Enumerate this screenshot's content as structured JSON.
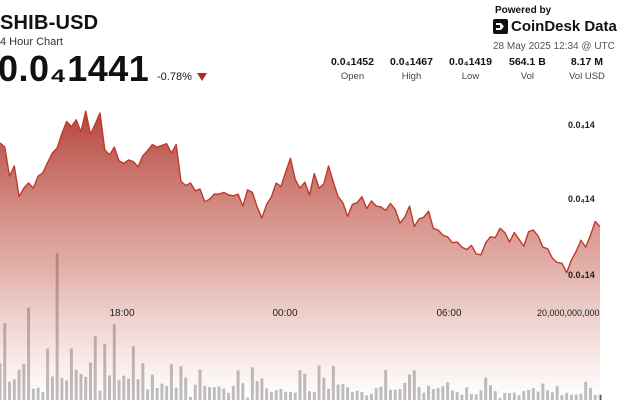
{
  "header": {
    "title": "SHIB-USD",
    "subtitle": "4 Hour Chart",
    "price": "0.0₄1441",
    "change": "-0.78%",
    "powered_by": "Powered by",
    "brand": "CoinDesk Data",
    "timestamp": "28 May 2025 12:34 @ UTC"
  },
  "stats": [
    {
      "value": "0.0₄1452",
      "label": "Open"
    },
    {
      "value": "0.0₄1467",
      "label": "High"
    },
    {
      "value": "0.0₄1419",
      "label": "Low"
    },
    {
      "value": "564.1 B",
      "label": "Vol"
    },
    {
      "value": "8.17 M",
      "label": "Vol USD"
    }
  ],
  "colors": {
    "line": "#c0392b",
    "area_top": "#b23a30",
    "volume_bar": "#5b5b5b",
    "down_arrow": "#b02a22"
  },
  "chart_data": {
    "type": "area",
    "title": "SHIB-USD",
    "x_tick_labels": [
      "18:00",
      "00:00",
      "06:00"
    ],
    "y_tick_labels": [
      "0.0₄14",
      "0.0₄14",
      "0.0₄14"
    ],
    "volume_tick_label": "20,000,000,000",
    "series": [
      {
        "name": "Price",
        "values": [
          1449.9,
          1449.4,
          1446.0,
          1447.2,
          1443.6,
          1444.6,
          1445.2,
          1444.6,
          1446.0,
          1446.4,
          1447.6,
          1448.7,
          1449.3,
          1451.0,
          1452.4,
          1451.8,
          1452.6,
          1451.2,
          1453.6,
          1450.9,
          1452.1,
          1453.4,
          1449.1,
          1448.5,
          1449.4,
          1447.8,
          1447.5,
          1447.9,
          1447.7,
          1447.1,
          1448.4,
          1449.0,
          1449.7,
          1449.4,
          1449.6,
          1449.8,
          1448.7,
          1449.7,
          1445.4,
          1444.9,
          1445.2,
          1444.3,
          1444.5,
          1443.0,
          1443.3,
          1443.9,
          1443.9,
          1444.1,
          1443.8,
          1443.7,
          1443.9,
          1442.5,
          1444.4,
          1444.1,
          1442.4,
          1441.1,
          1442.7,
          1443.6,
          1445.2,
          1444.8,
          1446.5,
          1448.1,
          1445.6,
          1444.6,
          1445.3,
          1443.8,
          1446.3,
          1444.6,
          1445.1,
          1447.2,
          1445.3,
          1443.6,
          1442.9,
          1441.3,
          1442.7,
          1442.9,
          1443.6,
          1442.2,
          1443.1,
          1442.5,
          1442.4,
          1442.0,
          1442.8,
          1442.1,
          1440.5,
          1441.2,
          1442.5,
          1440.1,
          1441.0,
          1441.2,
          1441.9,
          1439.9,
          1439.7,
          1439.1,
          1438.9,
          1438.2,
          1438.3,
          1437.7,
          1437.4,
          1437.9,
          1436.9,
          1436.8,
          1438.2,
          1438.9,
          1438.8,
          1439.9,
          1439.4,
          1438.3,
          1439.4,
          1438.6,
          1437.8,
          1439.5,
          1439.7,
          1439.0,
          1437.7,
          1437.5,
          1436.4,
          1435.9,
          1435.8,
          1434.7,
          1436.2,
          1437.2,
          1438.5,
          1437.7,
          1439.1,
          1440.7,
          1440.1
        ]
      },
      {
        "name": "Vol",
        "values": [
          17.4,
          36.6,
          8.7,
          9.9,
          14.4,
          17.1,
          44.0,
          5.4,
          5.8,
          3.8,
          24.5,
          11.2,
          69.9,
          10.5,
          9.3,
          24.5,
          14.4,
          12.4,
          11.0,
          17.8,
          30.4,
          4.5,
          26.8,
          11.7,
          36.1,
          9.6,
          11.6,
          10.1,
          25.6,
          9.9,
          17.5,
          5.0,
          12.1,
          5.7,
          7.8,
          6.7,
          17.0,
          5.9,
          16.1,
          10.7,
          1.5,
          7.3,
          14.4,
          6.7,
          6.1,
          6.1,
          6.4,
          5.4,
          3.4,
          6.7,
          14.1,
          8.0,
          1.1,
          15.6,
          9.0,
          10.3,
          5.5,
          3.9,
          4.7,
          5.3,
          3.9,
          3.9,
          3.5,
          14.2,
          12.5,
          4.2,
          3.9,
          16.4,
          10.7,
          5.3,
          16.2,
          7.4,
          7.6,
          6.1,
          3.8,
          4.4,
          3.8,
          2.2,
          2.9,
          5.6,
          6.3,
          14.3,
          4.9,
          4.9,
          5.2,
          8.1,
          12.1,
          14.1,
          6.1,
          3.5,
          6.8,
          5.2,
          5.6,
          6.5,
          8.4,
          4.5,
          3.9,
          2.5,
          6.0,
          2.8,
          2.7,
          4.6,
          10.7,
          7.0,
          4.2,
          1.0,
          3.3,
          3.3,
          3.5,
          2.3,
          4.2,
          4.8,
          5.7,
          4.0,
          7.8,
          4.6,
          3.6,
          6.6,
          2.3,
          3.4,
          2.5,
          2.6,
          3.0,
          8.6,
          5.8,
          2.4,
          2.5
        ]
      }
    ],
    "x_range": [
      0,
      126
    ],
    "price_range": [
      1433.5,
      1455.5
    ],
    "volume_range": [
      0,
      80
    ],
    "grid": false,
    "legend": "none"
  }
}
